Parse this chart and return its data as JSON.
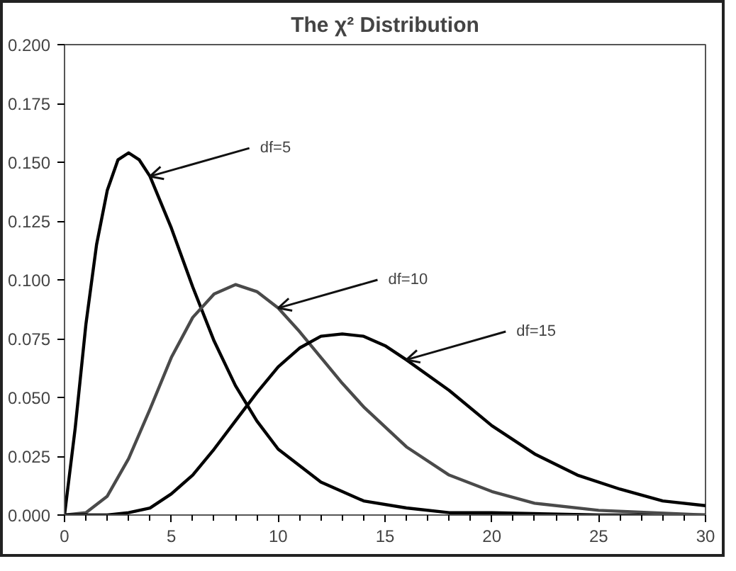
{
  "chart_data": {
    "type": "line",
    "title": "The χ² Distribution",
    "xlim": [
      0,
      30
    ],
    "xticks": [
      0,
      5,
      10,
      15,
      20,
      25,
      30
    ],
    "ylim": [
      0,
      0.2
    ],
    "yticks": [
      {
        "value": 0,
        "label": "0.000"
      },
      {
        "value": 0.025,
        "label": "0.025"
      },
      {
        "value": 0.05,
        "label": "0.050"
      },
      {
        "value": 0.075,
        "label": "0.075"
      },
      {
        "value": 0.1,
        "label": "0.100"
      },
      {
        "value": 0.125,
        "label": "0.125"
      },
      {
        "value": 0.15,
        "label": "0.150"
      },
      {
        "value": 0.175,
        "label": "0.175"
      },
      {
        "value": 0.2,
        "label": "0.200"
      }
    ],
    "series": [
      {
        "color": "#000000",
        "x": [
          0,
          0.5,
          1,
          1.5,
          2,
          2.5,
          3,
          3.5,
          4,
          5,
          6,
          7,
          8,
          9,
          10,
          12,
          14,
          16,
          18,
          20,
          25,
          30
        ],
        "values": [
          0,
          0.037,
          0.081,
          0.115,
          0.138,
          0.151,
          0.154,
          0.151,
          0.144,
          0.122,
          0.097,
          0.074,
          0.055,
          0.04,
          0.028,
          0.014,
          0.006,
          0.003,
          0.001,
          0.001,
          0,
          0
        ]
      },
      {
        "color": "#4a4a4a",
        "x": [
          0,
          1,
          2,
          3,
          4,
          5,
          6,
          7,
          8,
          9,
          10,
          11,
          12,
          13,
          14,
          16,
          18,
          20,
          22,
          25,
          30
        ],
        "values": [
          0,
          0.001,
          0.008,
          0.024,
          0.045,
          0.067,
          0.084,
          0.094,
          0.098,
          0.095,
          0.088,
          0.078,
          0.067,
          0.056,
          0.046,
          0.029,
          0.017,
          0.01,
          0.005,
          0.002,
          0
        ]
      },
      {
        "color": "#000000",
        "x": [
          0,
          2,
          3,
          4,
          5,
          6,
          7,
          8,
          9,
          10,
          11,
          12,
          13,
          14,
          15,
          16,
          18,
          20,
          22,
          24,
          26,
          28,
          30
        ],
        "values": [
          0,
          0,
          0.001,
          0.003,
          0.009,
          0.017,
          0.028,
          0.04,
          0.052,
          0.063,
          0.071,
          0.076,
          0.077,
          0.076,
          0.072,
          0.066,
          0.053,
          0.038,
          0.026,
          0.017,
          0.011,
          0.006,
          0.004
        ]
      }
    ],
    "annotations": [
      {
        "text": "df=5",
        "x": 4,
        "y": 0.144
      },
      {
        "text": "df=10",
        "x": 10,
        "y": 0.088
      },
      {
        "text": "df=15",
        "x": 16,
        "y": 0.066
      }
    ]
  }
}
